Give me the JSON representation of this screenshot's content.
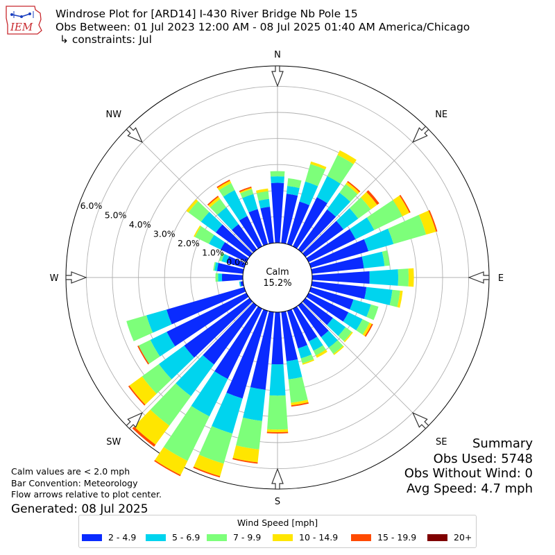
{
  "header": {
    "line1": "Windrose Plot for [ARD14] I-430 River Bridge Nb Pole 15",
    "line2": "Obs Between: 01 Jul 2023 12:00 AM - 08 Jul 2025 01:40 AM America/Chicago",
    "line3": "↳ constraints: Jul"
  },
  "logo": {
    "text": "IEM",
    "color": "#c8282d"
  },
  "calm": {
    "label": "Calm",
    "value": "15.2%"
  },
  "notes": {
    "line1": "Calm values are < 2.0 mph",
    "line2": "Bar Convention: Meteorology",
    "line3": "Flow arrows relative to plot center.",
    "generated": "Generated: 08 Jul 2025"
  },
  "summary": {
    "title": "Summary",
    "obs_used": "Obs Used: 5748",
    "obs_without_wind": "Obs Without Wind: 0",
    "avg_speed": "Avg Speed: 4.7 mph"
  },
  "legend": {
    "title": "Wind Speed [mph]",
    "items": [
      {
        "label": "2 - 4.9",
        "color": "#0a2bff"
      },
      {
        "label": "5 - 6.9",
        "color": "#00d4ee"
      },
      {
        "label": "7 - 9.9",
        "color": "#7dff7a"
      },
      {
        "label": "10 - 14.9",
        "color": "#ffe600"
      },
      {
        "label": "15 - 19.9",
        "color": "#ff4a00"
      },
      {
        "label": "20+",
        "color": "#7f0000"
      }
    ]
  },
  "chart_data": {
    "type": "windrose",
    "calm_percent": 15.2,
    "directions": [
      "N",
      "NE",
      "E",
      "SE",
      "S",
      "SW",
      "W",
      "NW"
    ],
    "radial_ticks": [
      0,
      1,
      2,
      3,
      4,
      5,
      6
    ],
    "radial_tick_labels": [
      "0.0%",
      "1.0%",
      "2.0%",
      "3.0%",
      "4.0%",
      "5.0%",
      "6.0%"
    ],
    "bin_width_deg": 10,
    "speed_bins": [
      "2 - 4.9",
      "5 - 6.9",
      "7 - 9.9",
      "10 - 14.9",
      "15 - 19.9",
      "20+"
    ],
    "series": [
      {
        "dir": 0,
        "values": [
          2.3,
          0.25,
          0.2,
          0.0,
          0.0,
          0.0
        ]
      },
      {
        "dir": 10,
        "values": [
          1.9,
          0.3,
          0.3,
          0.0,
          0.0,
          0.0
        ]
      },
      {
        "dir": 20,
        "values": [
          1.7,
          0.8,
          0.7,
          0.1,
          0.0,
          0.0
        ]
      },
      {
        "dir": 30,
        "values": [
          2.1,
          0.9,
          0.9,
          0.2,
          0.0,
          0.0
        ]
      },
      {
        "dir": 40,
        "values": [
          1.9,
          0.8,
          0.4,
          0.1,
          0.05,
          0.0
        ]
      },
      {
        "dir": 50,
        "values": [
          1.8,
          0.7,
          0.6,
          0.3,
          0.1,
          0.0
        ]
      },
      {
        "dir": 60,
        "values": [
          2.0,
          0.8,
          1.2,
          0.3,
          0.05,
          0.0
        ]
      },
      {
        "dir": 70,
        "values": [
          2.3,
          1.0,
          1.3,
          0.4,
          0.05,
          0.0
        ]
      },
      {
        "dir": 80,
        "values": [
          2.0,
          0.8,
          0.2,
          0.0,
          0.0,
          0.0
        ]
      },
      {
        "dir": 90,
        "values": [
          2.2,
          1.1,
          0.4,
          0.2,
          0.0,
          0.0
        ]
      },
      {
        "dir": 100,
        "values": [
          2.1,
          1.0,
          0.3,
          0.1,
          0.0,
          0.0
        ]
      },
      {
        "dir": 110,
        "values": [
          1.7,
          0.7,
          0.3,
          0.0,
          0.0,
          0.0
        ]
      },
      {
        "dir": 120,
        "values": [
          1.7,
          0.6,
          0.3,
          0.1,
          0.05,
          0.0
        ]
      },
      {
        "dir": 130,
        "values": [
          1.3,
          0.6,
          0.3,
          0.05,
          0.0,
          0.0
        ]
      },
      {
        "dir": 140,
        "values": [
          1.5,
          0.5,
          0.3,
          0.05,
          0.0,
          0.0
        ]
      },
      {
        "dir": 150,
        "values": [
          1.4,
          0.4,
          0.2,
          0.1,
          0.0,
          0.0
        ]
      },
      {
        "dir": 160,
        "values": [
          1.5,
          0.4,
          0.2,
          0.05,
          0.0,
          0.0
        ]
      },
      {
        "dir": 170,
        "values": [
          1.9,
          0.7,
          0.9,
          0.1,
          0.05,
          0.0
        ]
      },
      {
        "dir": 180,
        "values": [
          2.0,
          1.2,
          1.3,
          0.1,
          0.05,
          0.0
        ]
      },
      {
        "dir": 190,
        "values": [
          3.0,
          1.2,
          1.1,
          0.5,
          0.05,
          0.0
        ]
      },
      {
        "dir": 200,
        "values": [
          3.5,
          1.4,
          1.2,
          0.5,
          0.05,
          0.0
        ]
      },
      {
        "dir": 210,
        "values": [
          3.0,
          1.6,
          1.9,
          0.6,
          0.05,
          0.0
        ]
      },
      {
        "dir": 220,
        "values": [
          2.8,
          1.5,
          1.4,
          0.9,
          0.1,
          0.0
        ]
      },
      {
        "dir": 230,
        "values": [
          3.1,
          1.2,
          0.8,
          0.6,
          0.05,
          0.0
        ]
      },
      {
        "dir": 240,
        "values": [
          3.4,
          0.7,
          0.5,
          0.0,
          0.05,
          0.0
        ]
      },
      {
        "dir": 250,
        "values": [
          3.1,
          0.8,
          0.8,
          0.0,
          0.0,
          0.0
        ]
      },
      {
        "dir": 260,
        "values": [
          0.1,
          0.05,
          0.0,
          0.0,
          0.0,
          0.0
        ]
      },
      {
        "dir": 270,
        "values": [
          0.8,
          0.15,
          0.1,
          0.0,
          0.0,
          0.0
        ]
      },
      {
        "dir": 280,
        "values": [
          1.0,
          0.1,
          0.05,
          0.0,
          0.0,
          0.0
        ]
      },
      {
        "dir": 290,
        "values": [
          0.7,
          0.2,
          0.1,
          0.0,
          0.0,
          0.0
        ]
      },
      {
        "dir": 300,
        "values": [
          1.1,
          0.5,
          0.6,
          0.05,
          0.0,
          0.0
        ]
      },
      {
        "dir": 310,
        "values": [
          1.6,
          0.7,
          0.6,
          0.1,
          0.0,
          0.0
        ]
      },
      {
        "dir": 320,
        "values": [
          1.2,
          0.8,
          0.4,
          0.1,
          0.05,
          0.0
        ]
      },
      {
        "dir": 330,
        "values": [
          1.3,
          1.1,
          0.3,
          0.1,
          0.05,
          0.0
        ]
      },
      {
        "dir": 340,
        "values": [
          1.4,
          0.6,
          0.2,
          0.05,
          0.05,
          0.0
        ]
      },
      {
        "dir": 350,
        "values": [
          1.4,
          0.3,
          0.3,
          0.1,
          0.0,
          0.0
        ]
      }
    ]
  }
}
